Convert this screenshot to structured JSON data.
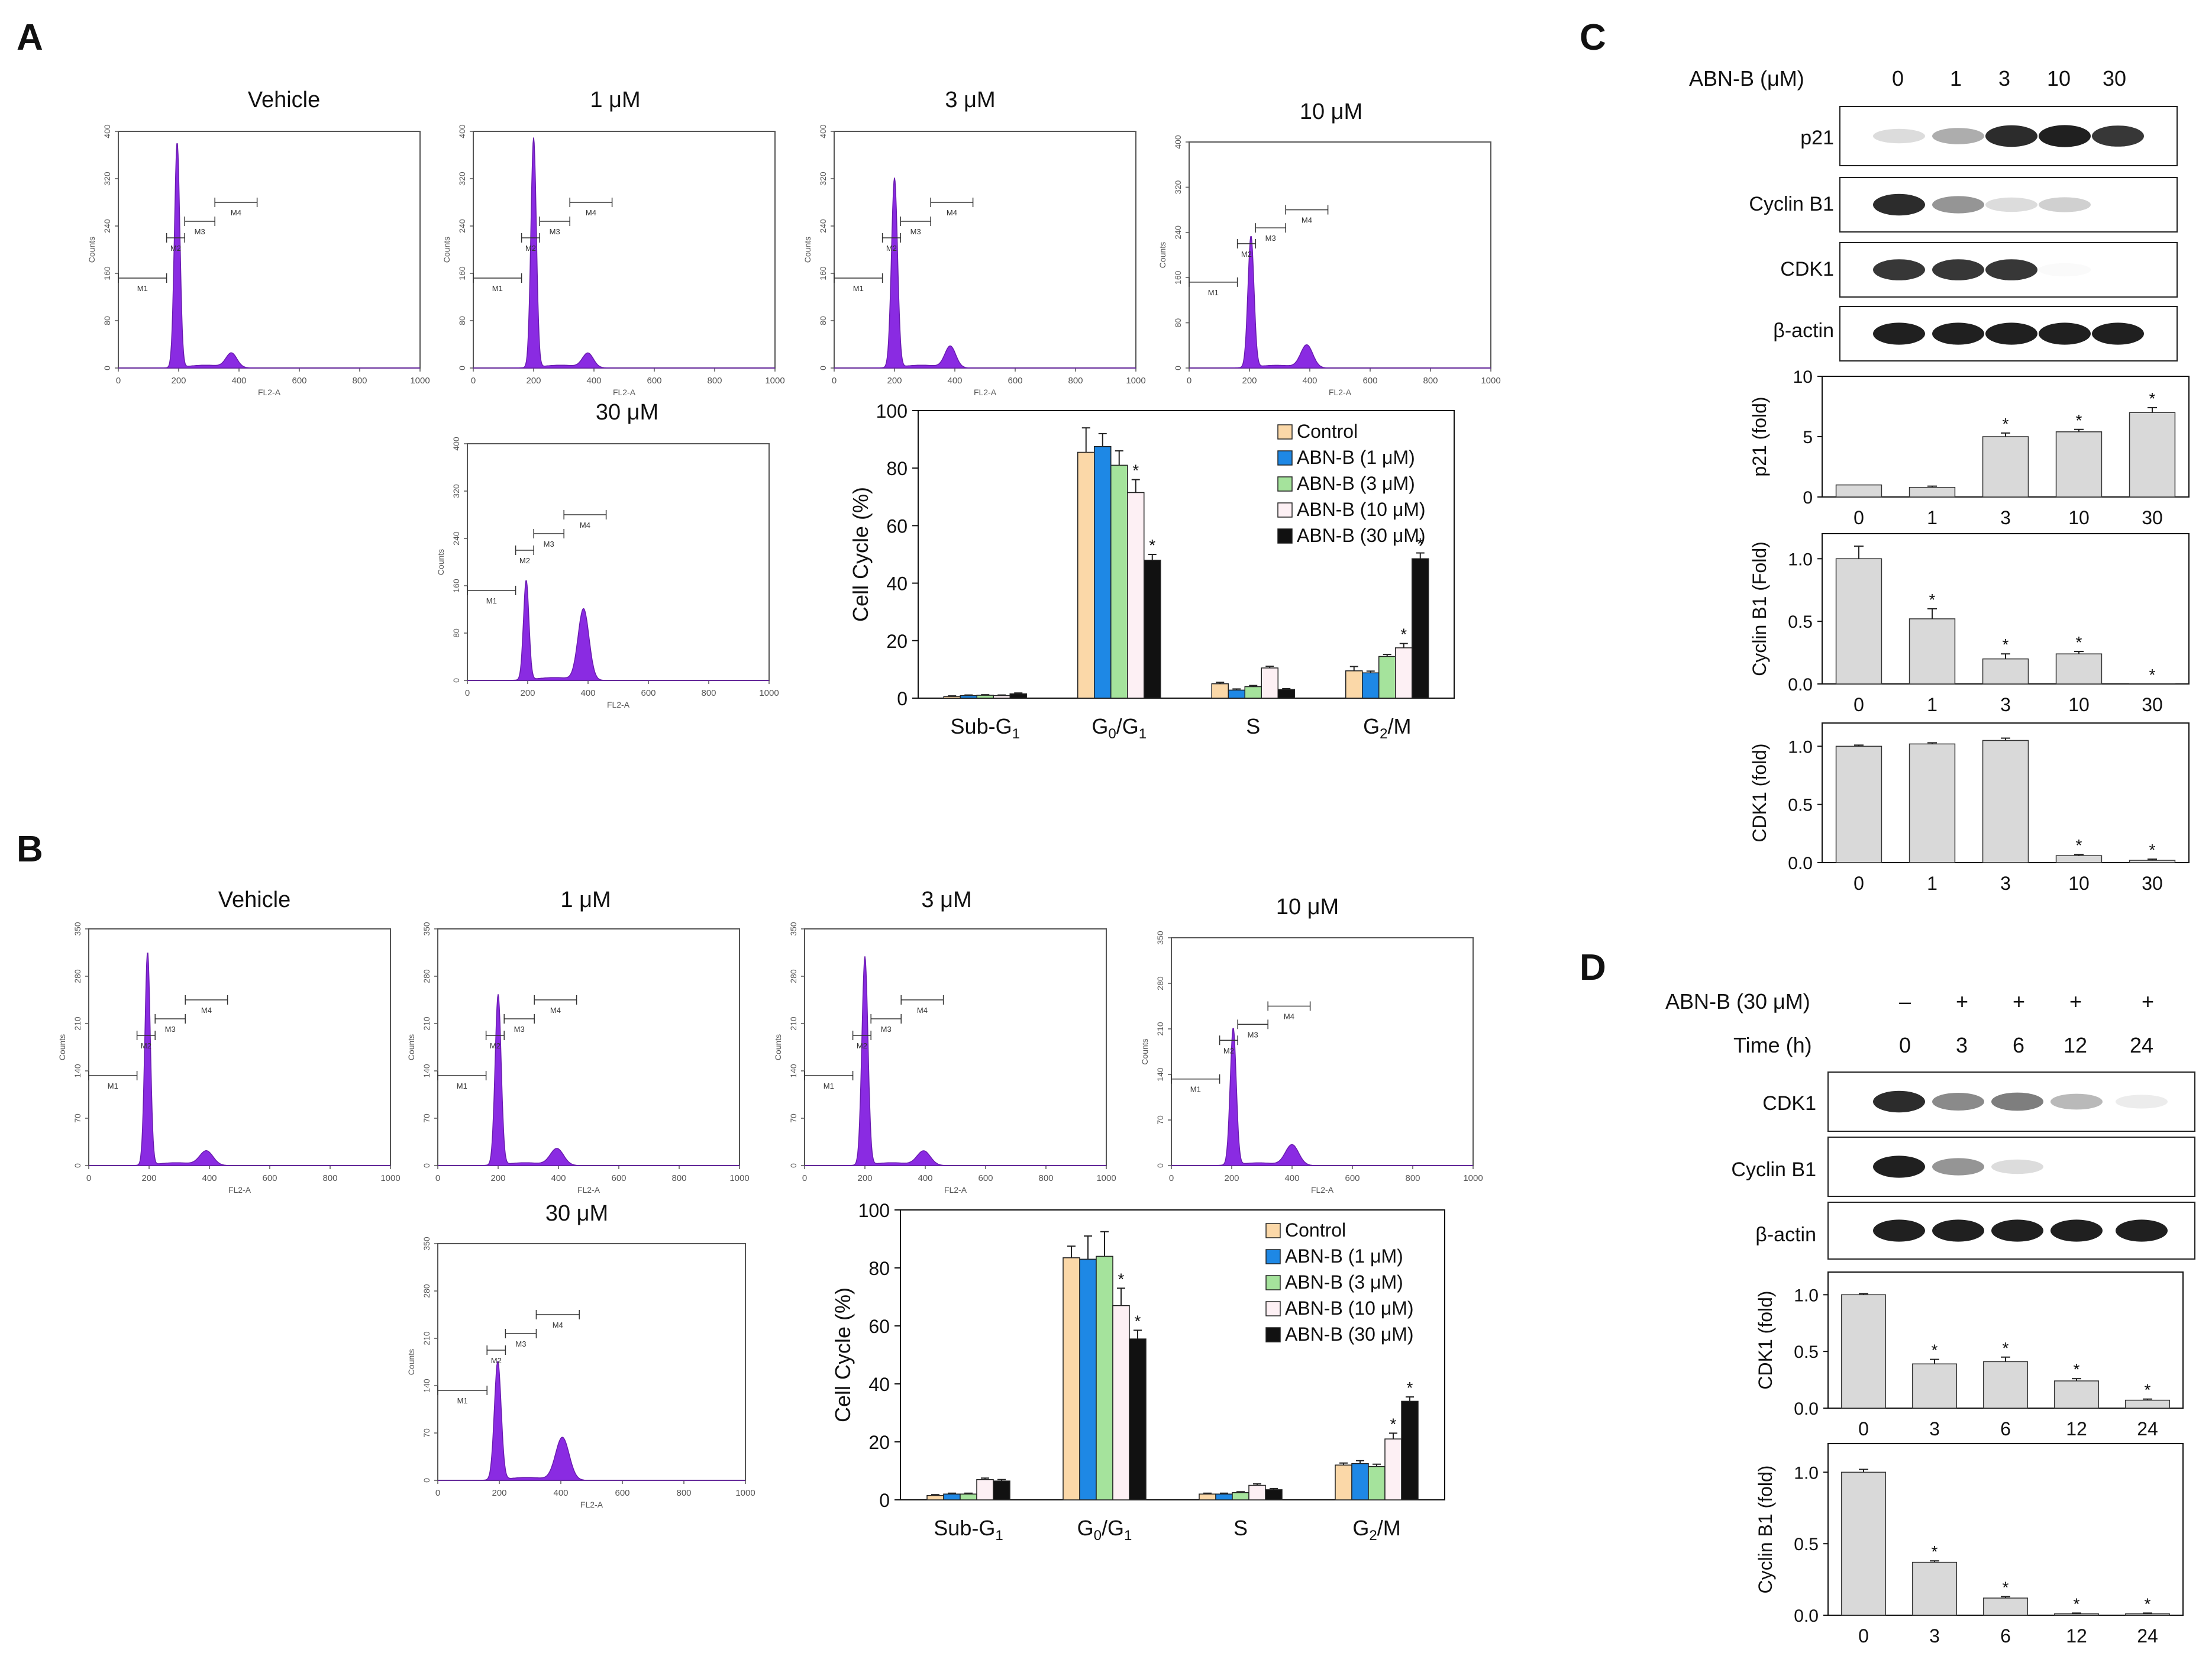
{
  "colors": {
    "hist_fill": "#8a2be2",
    "hist_stroke": "#6a1bb0",
    "control": "#fbd8a8",
    "abn1": "#1e88e5",
    "abn3": "#a5e39c",
    "abn10": "#fdf0f4",
    "abn30": "#111111",
    "grey_bar": "#d9d9d9"
  },
  "panels": {
    "A": "A",
    "B": "B",
    "C": "C",
    "D": "D"
  },
  "hist_axis": {
    "counts_label": "Counts",
    "x_label": "FL2-A",
    "x_ticks": [
      "0",
      "200",
      "400",
      "600",
      "800",
      "1000"
    ],
    "y_ticks_A": [
      "0",
      "80",
      "160",
      "240",
      "320",
      "400"
    ],
    "y_ticks_B": [
      "0",
      "70",
      "140",
      "210",
      "280",
      "350"
    ],
    "gate_labels": [
      "M1",
      "M2",
      "M3",
      "M4"
    ]
  },
  "histograms_A": [
    {
      "title": "Vehicle",
      "peaks": [
        {
          "mode": 195,
          "sd": 9,
          "height": 0.95
        },
        {
          "mode": 375,
          "sd": 18,
          "height": 0.06
        }
      ]
    },
    {
      "title": "1 μM",
      "peaks": [
        {
          "mode": 200,
          "sd": 9,
          "height": 0.97
        },
        {
          "mode": 380,
          "sd": 18,
          "height": 0.06
        }
      ]
    },
    {
      "title": "3 μM",
      "peaks": [
        {
          "mode": 200,
          "sd": 10,
          "height": 0.8
        },
        {
          "mode": 385,
          "sd": 18,
          "height": 0.09
        }
      ]
    },
    {
      "title": "10 μM",
      "peaks": [
        {
          "mode": 205,
          "sd": 10,
          "height": 0.58
        },
        {
          "mode": 390,
          "sd": 20,
          "height": 0.1
        }
      ]
    },
    {
      "title": "30 μM",
      "peaks": [
        {
          "mode": 195,
          "sd": 9,
          "height": 0.42
        },
        {
          "mode": 385,
          "sd": 18,
          "height": 0.3
        }
      ]
    }
  ],
  "histograms_B": [
    {
      "title": "Vehicle",
      "peaks": [
        {
          "mode": 195,
          "sd": 9,
          "height": 0.9
        },
        {
          "mode": 390,
          "sd": 22,
          "height": 0.06
        }
      ]
    },
    {
      "title": "1 μM",
      "peaks": [
        {
          "mode": 200,
          "sd": 10,
          "height": 0.72
        },
        {
          "mode": 395,
          "sd": 22,
          "height": 0.07
        }
      ]
    },
    {
      "title": "3 μM",
      "peaks": [
        {
          "mode": 200,
          "sd": 10,
          "height": 0.88
        },
        {
          "mode": 395,
          "sd": 22,
          "height": 0.06
        }
      ]
    },
    {
      "title": "10 μM",
      "peaks": [
        {
          "mode": 205,
          "sd": 10,
          "height": 0.6
        },
        {
          "mode": 400,
          "sd": 22,
          "height": 0.09
        }
      ]
    },
    {
      "title": "30 μM",
      "peaks": [
        {
          "mode": 195,
          "sd": 11,
          "height": 0.5
        },
        {
          "mode": 405,
          "sd": 22,
          "height": 0.18
        }
      ]
    }
  ],
  "chart_data": [
    {
      "id": "A-bar",
      "type": "bar",
      "ylabel": "Cell Cycle (%)",
      "ylim": [
        0,
        100
      ],
      "yticks": [
        "0",
        "20",
        "40",
        "60",
        "80",
        "100"
      ],
      "categories": [
        "Sub-G1",
        "G0/G1",
        "S",
        "G2/M"
      ],
      "series": [
        {
          "name": "Control",
          "values": [
            0.6,
            85.5,
            5.0,
            9.5
          ],
          "err": [
            0.2,
            8.5,
            0.5,
            1.5
          ]
        },
        {
          "name": "ABN-B (1 μM)",
          "values": [
            0.9,
            87.5,
            2.8,
            8.8
          ],
          "err": [
            0.2,
            4.5,
            0.4,
            0.6
          ]
        },
        {
          "name": "ABN-B (3 μM)",
          "values": [
            1.0,
            81.0,
            4.0,
            14.5
          ],
          "err": [
            0.2,
            5.0,
            0.4,
            0.7
          ]
        },
        {
          "name": "ABN-B (10 μM)",
          "values": [
            0.9,
            71.5,
            10.5,
            17.5
          ],
          "err": [
            0.2,
            4.5,
            0.6,
            1.5
          ]
        },
        {
          "name": "ABN-B (30 μM)",
          "values": [
            1.5,
            48.0,
            3.0,
            48.5
          ],
          "err": [
            0.3,
            2.0,
            0.3,
            2.0
          ]
        }
      ],
      "significance": "*"
    },
    {
      "id": "B-bar",
      "type": "bar",
      "ylabel": "Cell Cycle (%)",
      "ylim": [
        0,
        100
      ],
      "yticks": [
        "0",
        "20",
        "40",
        "60",
        "80",
        "100"
      ],
      "categories": [
        "Sub-G1",
        "G0/G1",
        "S",
        "G2/M"
      ],
      "series": [
        {
          "name": "Control",
          "values": [
            1.5,
            83.5,
            2.0,
            12.0
          ],
          "err": [
            0.3,
            4.0,
            0.3,
            0.7
          ]
        },
        {
          "name": "ABN-B (1 μM)",
          "values": [
            2.0,
            83.0,
            2.0,
            12.5
          ],
          "err": [
            0.3,
            8.0,
            0.3,
            1.0
          ]
        },
        {
          "name": "ABN-B (3 μM)",
          "values": [
            2.0,
            84.0,
            2.5,
            11.5
          ],
          "err": [
            0.3,
            8.5,
            0.3,
            0.8
          ]
        },
        {
          "name": "ABN-B (10 μM)",
          "values": [
            7.0,
            67.0,
            5.0,
            21.0
          ],
          "err": [
            0.5,
            6.0,
            0.5,
            2.0
          ]
        },
        {
          "name": "ABN-B (30 μM)",
          "values": [
            6.5,
            55.5,
            3.5,
            34.0
          ],
          "err": [
            0.5,
            3.0,
            0.4,
            1.5
          ]
        }
      ],
      "significance": "*"
    },
    {
      "id": "C-p21",
      "type": "bar",
      "ylabel": "p21 (fold)",
      "ylim": [
        0,
        10
      ],
      "yticks": [
        "0",
        "5",
        "10"
      ],
      "categories": [
        "0",
        "1",
        "3",
        "10",
        "30"
      ],
      "values": [
        1.0,
        0.8,
        5.0,
        5.4,
        7.0
      ],
      "err": [
        0,
        0.1,
        0.3,
        0.2,
        0.4
      ],
      "stars": [
        false,
        false,
        true,
        true,
        true
      ]
    },
    {
      "id": "C-cyclin",
      "type": "bar",
      "ylabel": "Cyclin B1 (Fold)",
      "ylim": [
        0,
        1.2
      ],
      "yticks": [
        "0.0",
        "0.5",
        "1.0"
      ],
      "categories": [
        "0",
        "1",
        "3",
        "10",
        "30"
      ],
      "values": [
        1.0,
        0.52,
        0.2,
        0.24,
        0.0
      ],
      "err": [
        0.1,
        0.08,
        0.04,
        0.02,
        0
      ],
      "stars": [
        false,
        true,
        true,
        true,
        true
      ]
    },
    {
      "id": "C-cdk1",
      "type": "bar",
      "ylabel": "CDK1 (fold)",
      "ylim": [
        0,
        1.2
      ],
      "yticks": [
        "0.0",
        "0.5",
        "1.0"
      ],
      "categories": [
        "0",
        "1",
        "3",
        "10",
        "30"
      ],
      "values": [
        1.0,
        1.02,
        1.05,
        0.06,
        0.02
      ],
      "err": [
        0.01,
        0.01,
        0.02,
        0.01,
        0.01
      ],
      "stars": [
        false,
        false,
        false,
        true,
        true
      ]
    },
    {
      "id": "D-cdk1",
      "type": "bar",
      "ylabel": "CDK1 (fold)",
      "ylim": [
        0,
        1.2
      ],
      "yticks": [
        "0.0",
        "0.5",
        "1.0"
      ],
      "categories": [
        "0",
        "3",
        "6",
        "12",
        "24"
      ],
      "values": [
        1.0,
        0.39,
        0.41,
        0.24,
        0.07
      ],
      "err": [
        0.01,
        0.04,
        0.04,
        0.02,
        0.01
      ],
      "stars": [
        false,
        true,
        true,
        true,
        true
      ]
    },
    {
      "id": "D-cyclin",
      "type": "bar",
      "ylabel": "Cyclin B1 (fold)",
      "ylim": [
        0,
        1.2
      ],
      "yticks": [
        "0.0",
        "0.5",
        "1.0"
      ],
      "categories": [
        "0",
        "3",
        "6",
        "12",
        "24"
      ],
      "values": [
        1.0,
        0.37,
        0.12,
        0.01,
        0.01
      ],
      "err": [
        0.02,
        0.01,
        0.01,
        0.005,
        0.005
      ],
      "stars": [
        false,
        true,
        true,
        true,
        true
      ]
    }
  ],
  "blot_C": {
    "header_label": "ABN-B (μM)",
    "lanes": [
      "0",
      "1",
      "3",
      "10",
      "30"
    ],
    "bands": [
      {
        "label": "p21",
        "intensity": [
          0.15,
          0.35,
          0.9,
          0.95,
          0.85
        ]
      },
      {
        "label": "Cyclin B1",
        "intensity": [
          0.9,
          0.45,
          0.15,
          0.2,
          0.0
        ]
      },
      {
        "label": "CDK1",
        "intensity": [
          0.85,
          0.85,
          0.85,
          0.02,
          0.0
        ]
      },
      {
        "label": "β-actin",
        "intensity": [
          0.95,
          0.95,
          0.95,
          0.95,
          0.95
        ]
      }
    ]
  },
  "blot_D": {
    "treat_label": "ABN-B (30 μM)",
    "treat_signs": [
      "–",
      "+",
      "+",
      "+",
      "+"
    ],
    "time_label": "Time (h)",
    "lanes": [
      "0",
      "3",
      "6",
      "12",
      "24"
    ],
    "bands": [
      {
        "label": "CDK1",
        "intensity": [
          0.9,
          0.5,
          0.55,
          0.3,
          0.08
        ]
      },
      {
        "label": "Cyclin B1",
        "intensity": [
          0.95,
          0.45,
          0.15,
          0.0,
          0.0
        ]
      },
      {
        "label": "β-actin",
        "intensity": [
          0.95,
          0.95,
          0.95,
          0.95,
          0.95
        ]
      }
    ]
  }
}
